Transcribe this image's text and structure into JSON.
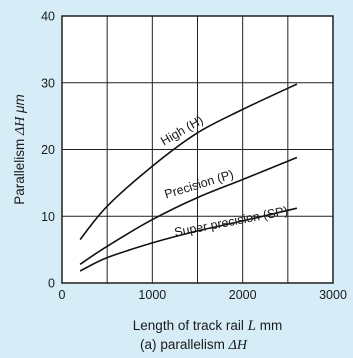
{
  "chart_data": {
    "type": "line",
    "x_unit_label": "Length of track rail",
    "x_symbol": "L",
    "x_unit": "mm",
    "y_label_prefix": "Parallelism",
    "y_symbol": "ΔH",
    "y_unit": "μm",
    "caption_prefix": "(a)",
    "caption_text": "parallelism",
    "caption_symbol": "ΔH",
    "xlim": [
      0,
      3000
    ],
    "ylim": [
      0,
      40
    ],
    "x_ticks": [
      0,
      1000,
      2000,
      3000
    ],
    "y_ticks": [
      0,
      10,
      20,
      30,
      40
    ],
    "x_grid": [
      500,
      1000,
      1500,
      2000,
      2500
    ],
    "y_grid": [
      10,
      20,
      30
    ],
    "grid": true,
    "series": [
      {
        "name": "High (H)",
        "x": [
          200,
          500,
          1000,
          1500,
          2000,
          2600
        ],
        "y": [
          6.5,
          11.5,
          17.5,
          22.5,
          26,
          29.8
        ]
      },
      {
        "name": "Precision (P)",
        "x": [
          200,
          500,
          1000,
          1500,
          2000,
          2600
        ],
        "y": [
          2.8,
          5.5,
          9.5,
          12.8,
          15.5,
          18.8
        ]
      },
      {
        "name": "Super precision (SP)",
        "x": [
          200,
          500,
          1000,
          1500,
          2000,
          2600
        ],
        "y": [
          1.8,
          3.8,
          6.0,
          7.8,
          9.3,
          11.2
        ]
      }
    ],
    "curve_labels": [
      {
        "text": "High (H)",
        "x": 1350,
        "y": 22.3,
        "angle": -30
      },
      {
        "text": "Precision (P)",
        "x": 1530,
        "y": 14.2,
        "angle": -17
      },
      {
        "text": "Super precision (SP)",
        "x": 1880,
        "y": 8.6,
        "angle": -11
      }
    ]
  }
}
